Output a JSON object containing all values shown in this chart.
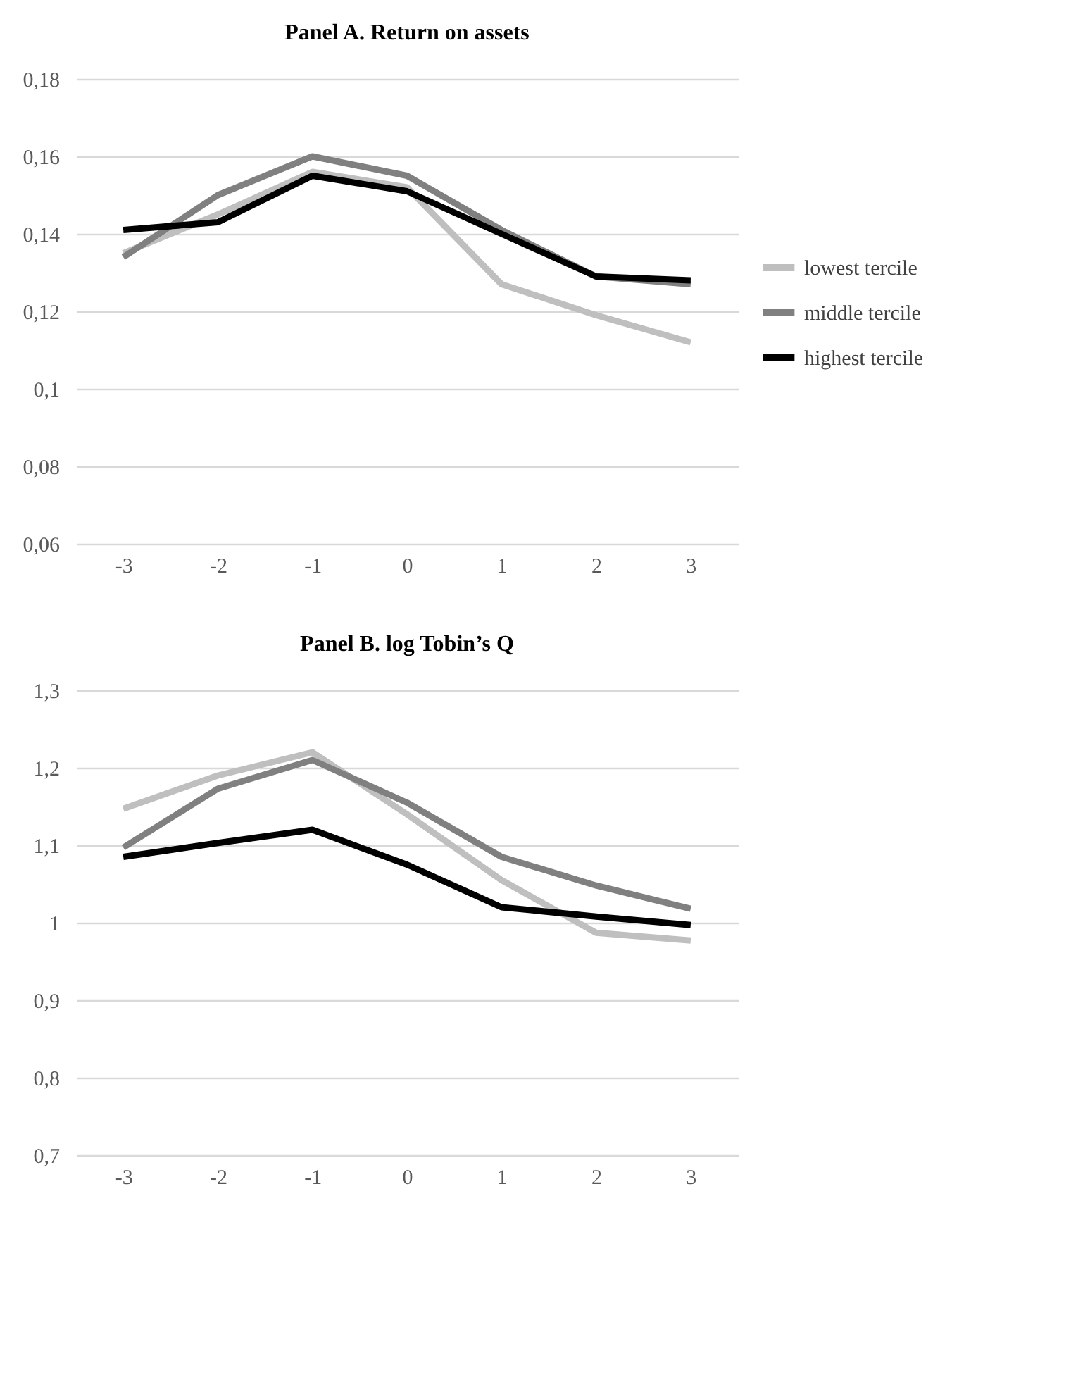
{
  "chart_data": [
    {
      "type": "line",
      "title": "Panel A. Return on assets",
      "categories": [
        "-3",
        "-2",
        "-1",
        "0",
        "1",
        "2",
        "3"
      ],
      "series": [
        {
          "name": "lowest tercile",
          "color": "#bfbfbf",
          "values": [
            0.135,
            0.145,
            0.156,
            0.152,
            0.127,
            0.119,
            0.112
          ]
        },
        {
          "name": "middle tercile",
          "color": "#808080",
          "values": [
            0.134,
            0.15,
            0.16,
            0.155,
            0.141,
            0.129,
            0.127
          ]
        },
        {
          "name": "highest tercile",
          "color": "#000000",
          "values": [
            0.141,
            0.143,
            0.155,
            0.151,
            0.14,
            0.129,
            0.128
          ]
        }
      ],
      "ylim": [
        0.06,
        0.18
      ],
      "yticks": [
        {
          "value": 0.06,
          "label": "0,06"
        },
        {
          "value": 0.08,
          "label": "0,08"
        },
        {
          "value": 0.1,
          "label": "0,1"
        },
        {
          "value": 0.12,
          "label": "0,12"
        },
        {
          "value": 0.14,
          "label": "0,14"
        },
        {
          "value": 0.16,
          "label": "0,16"
        },
        {
          "value": 0.18,
          "label": "0,18"
        }
      ],
      "grid": "y",
      "legend": "right",
      "marker": "none",
      "line_style": "solid"
    },
    {
      "type": "line",
      "title": "Panel B. log Tobin’s Q",
      "categories": [
        "-3",
        "-2",
        "-1",
        "0",
        "1",
        "2",
        "3"
      ],
      "series": [
        {
          "name": "lowest tercile",
          "color": "#bfbfbf",
          "values": [
            1.147,
            1.19,
            1.22,
            1.14,
            1.055,
            0.987,
            0.977
          ]
        },
        {
          "name": "middle tercile",
          "color": "#808080",
          "values": [
            1.097,
            1.173,
            1.21,
            1.155,
            1.085,
            1.048,
            1.018
          ]
        },
        {
          "name": "highest tercile",
          "color": "#000000",
          "values": [
            1.085,
            1.103,
            1.12,
            1.075,
            1.02,
            1.008,
            0.997
          ]
        }
      ],
      "ylim": [
        0.7,
        1.3
      ],
      "yticks": [
        {
          "value": 0.7,
          "label": "0,7"
        },
        {
          "value": 0.8,
          "label": "0,8"
        },
        {
          "value": 0.9,
          "label": "0,9"
        },
        {
          "value": 1.0,
          "label": "1"
        },
        {
          "value": 1.1,
          "label": "1,1"
        },
        {
          "value": 1.2,
          "label": "1,2"
        },
        {
          "value": 1.3,
          "label": "1,3"
        }
      ],
      "grid": "y",
      "legend": "right",
      "marker": "none",
      "line_style": "solid"
    }
  ]
}
